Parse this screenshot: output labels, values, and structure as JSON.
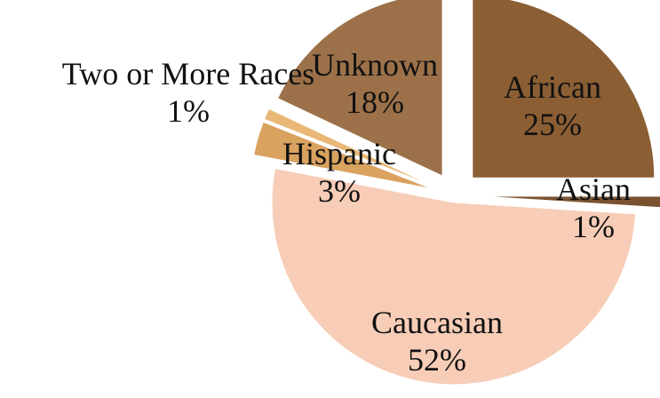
{
  "chart_data": {
    "type": "pie",
    "title": "",
    "slices": [
      {
        "label": "African",
        "value": 25,
        "display": "25%",
        "color": "#8B5E34"
      },
      {
        "label": "Asian",
        "value": 1,
        "display": "1%",
        "color": "#7A5230"
      },
      {
        "label": "Caucasian",
        "value": 52,
        "display": "52%",
        "color": "#F7CDB7"
      },
      {
        "label": "Hispanic",
        "value": 3,
        "display": "3%",
        "color": "#D9A25F"
      },
      {
        "label": "Two or More Races",
        "value": 1,
        "display": "1%",
        "color": "#E9B877"
      },
      {
        "label": "Unknown",
        "value": 18,
        "display": "18%",
        "color": "#9C7149"
      }
    ],
    "start_angle": "12 o'clock",
    "direction": "clockwise",
    "exploded": true,
    "legend": "none",
    "data_labels": "category name and percentage"
  }
}
